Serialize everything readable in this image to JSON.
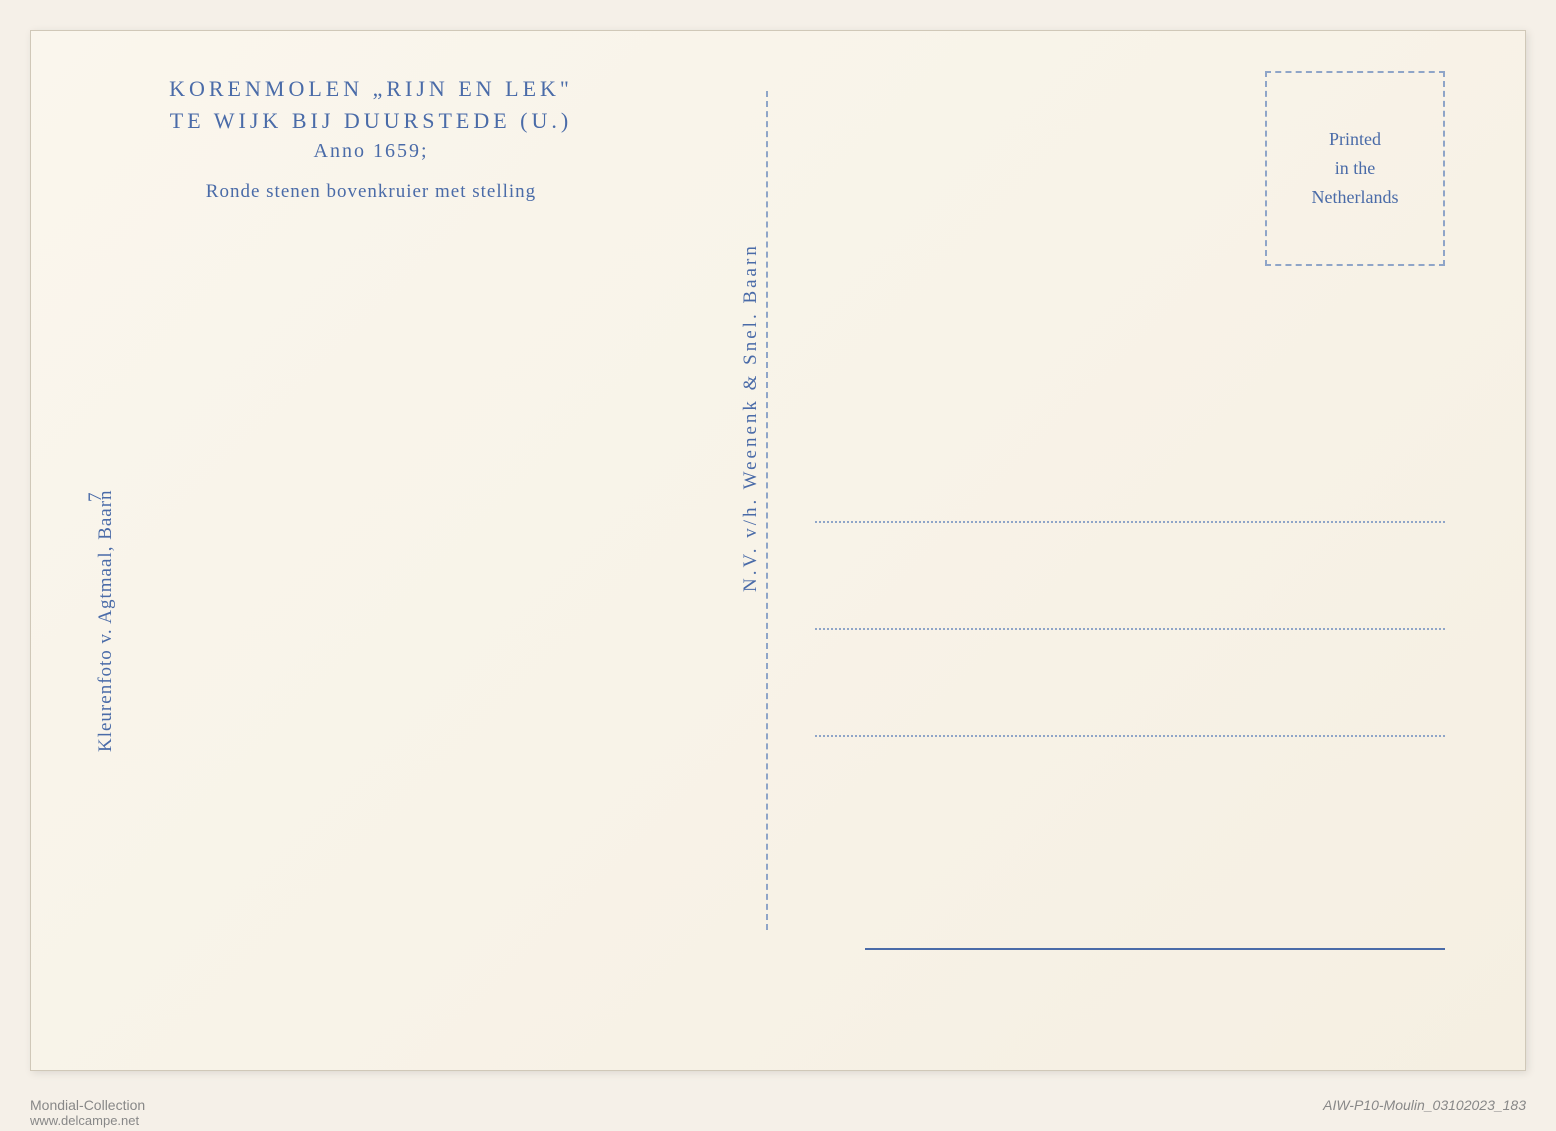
{
  "header": {
    "line1": "KORENMOLEN „RIJN EN LEK\"",
    "line2": "TE WIJK BIJ DUURSTEDE (U.)",
    "anno": "Anno 1659;",
    "description": "Ronde stenen bovenkruier met stelling"
  },
  "stamp": {
    "line1": "Printed",
    "line2": "in the",
    "line3": "Netherlands"
  },
  "publisher": "N.V. v/h. Weenenk & Snel. Baarn",
  "photographer": "Kleurenfoto v. Agtmaal, Baarn",
  "number": "7",
  "watermarks": {
    "left": "Mondial-Collection",
    "right": "AIW-P10-Moulin_03102023_183",
    "url": "www.delcampe.net",
    "right2": "MondialCollection"
  },
  "colors": {
    "text_blue": "#4a6ba8",
    "dashed_blue": "#8fa5c8",
    "background": "#f5f0e8",
    "card_bg": "#faf6ed"
  }
}
